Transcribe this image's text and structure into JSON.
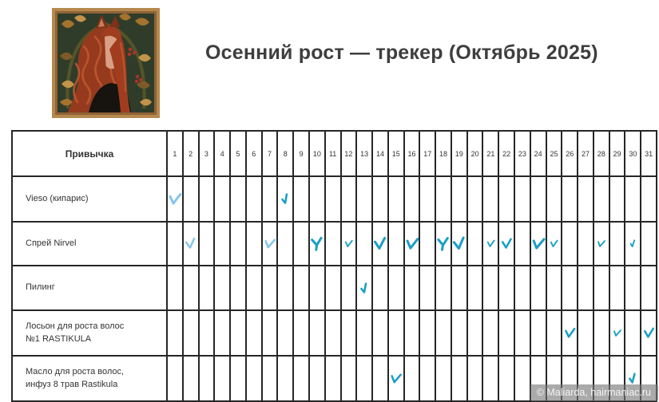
{
  "header": {
    "title": "Осенний рост — трекер (Октябрь 2025)"
  },
  "watermark": {
    "text": "© Maliarda, hairmaniac.ru"
  },
  "colors": {
    "check_teal": "#1a9fc6",
    "check_light_blue": "#87c6ea",
    "grid_border": "#262626",
    "title_text": "#3e3e3e"
  },
  "chart_data": {
    "type": "table",
    "title": "Осенний рост — трекер (Октябрь 2025)",
    "habit_column_header": "Привычка",
    "day_numbers": [
      1,
      2,
      3,
      4,
      5,
      6,
      7,
      8,
      9,
      10,
      11,
      12,
      13,
      14,
      15,
      16,
      17,
      18,
      19,
      20,
      21,
      22,
      23,
      24,
      25,
      26,
      27,
      28,
      29,
      30,
      31
    ],
    "rows": [
      {
        "habit": "Vieso (кипарис)",
        "checks": [
          {
            "day": 1,
            "color": "light",
            "size": "l",
            "kind": "v"
          },
          {
            "day": 8,
            "color": "teal",
            "size": "m",
            "kind": "r"
          }
        ]
      },
      {
        "habit": "Спрей Nirvel",
        "checks": [
          {
            "day": 2,
            "color": "light",
            "size": "m",
            "kind": "v"
          },
          {
            "day": 7,
            "color": "light",
            "size": "m",
            "kind": "v"
          },
          {
            "day": 10,
            "color": "teal",
            "size": "l",
            "kind": "y"
          },
          {
            "day": 12,
            "color": "teal",
            "size": "s",
            "kind": "v"
          },
          {
            "day": 14,
            "color": "teal",
            "size": "l",
            "kind": "v"
          },
          {
            "day": 16,
            "color": "teal",
            "size": "l",
            "kind": "v"
          },
          {
            "day": 18,
            "color": "teal",
            "size": "l",
            "kind": "y"
          },
          {
            "day": 19,
            "color": "teal",
            "size": "l",
            "kind": "v"
          },
          {
            "day": 21,
            "color": "teal",
            "size": "s",
            "kind": "v"
          },
          {
            "day": 22,
            "color": "teal",
            "size": "m",
            "kind": "v"
          },
          {
            "day": 24,
            "color": "teal",
            "size": "l",
            "kind": "v"
          },
          {
            "day": 25,
            "color": "teal",
            "size": "s",
            "kind": "v"
          },
          {
            "day": 28,
            "color": "teal",
            "size": "s",
            "kind": "v"
          },
          {
            "day": 30,
            "color": "teal",
            "size": "s",
            "kind": "r"
          }
        ]
      },
      {
        "habit": "Пилинг",
        "checks": [
          {
            "day": 13,
            "color": "teal",
            "size": "m",
            "kind": "r"
          }
        ]
      },
      {
        "habit": "Лосьон для роста волос\n№1 RASTIKULA",
        "checks": [
          {
            "day": 26,
            "color": "teal",
            "size": "m",
            "kind": "v"
          },
          {
            "day": 29,
            "color": "teal",
            "size": "s",
            "kind": "v"
          },
          {
            "day": 31,
            "color": "teal",
            "size": "m",
            "kind": "v"
          }
        ]
      },
      {
        "habit": "Масло для роста волос,\nинфуз 8 трав Rastikula",
        "checks": [
          {
            "day": 15,
            "color": "teal",
            "size": "m",
            "kind": "v"
          },
          {
            "day": 30,
            "color": "teal",
            "size": "m",
            "kind": "r"
          }
        ]
      }
    ]
  }
}
